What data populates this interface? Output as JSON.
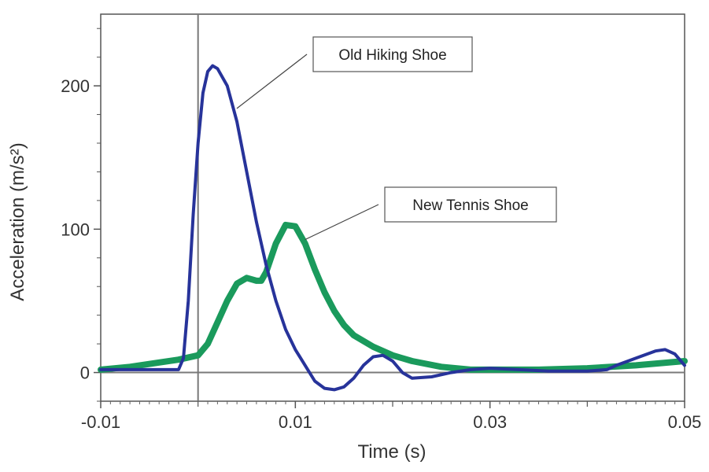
{
  "chart_data": {
    "type": "line",
    "xlabel": "Time (s)",
    "ylabel": "Acceleration (m/s²)",
    "xlim": [
      -0.01,
      0.05
    ],
    "ylim": [
      -20,
      250
    ],
    "x_ticks": [
      -0.01,
      0.01,
      0.03,
      0.05
    ],
    "x_tick_labels": [
      "-0.01",
      "0.01",
      "0.03",
      "0.05"
    ],
    "x_minor_ticks": [
      0.0,
      0.02,
      0.04
    ],
    "y_ticks": [
      0,
      100,
      200
    ],
    "y_tick_labels": [
      "0",
      "100",
      "200"
    ],
    "zero_line": true,
    "vertical_marker_x": 0.0,
    "grid": false,
    "series": [
      {
        "name": "Old Hiking Shoe",
        "color": "#27339a",
        "points": [
          [
            -0.01,
            2
          ],
          [
            -0.006,
            2
          ],
          [
            -0.002,
            2
          ],
          [
            -0.0015,
            10
          ],
          [
            -0.001,
            50
          ],
          [
            -0.0005,
            110
          ],
          [
            0.0,
            160
          ],
          [
            0.0005,
            195
          ],
          [
            0.001,
            210
          ],
          [
            0.0015,
            214
          ],
          [
            0.002,
            212
          ],
          [
            0.003,
            200
          ],
          [
            0.004,
            175
          ],
          [
            0.005,
            140
          ],
          [
            0.006,
            105
          ],
          [
            0.007,
            75
          ],
          [
            0.008,
            50
          ],
          [
            0.009,
            30
          ],
          [
            0.01,
            16
          ],
          [
            0.011,
            5
          ],
          [
            0.012,
            -6
          ],
          [
            0.013,
            -11
          ],
          [
            0.014,
            -12
          ],
          [
            0.015,
            -10
          ],
          [
            0.016,
            -4
          ],
          [
            0.017,
            5
          ],
          [
            0.018,
            11
          ],
          [
            0.019,
            12
          ],
          [
            0.02,
            8
          ],
          [
            0.021,
            0
          ],
          [
            0.022,
            -4
          ],
          [
            0.024,
            -3
          ],
          [
            0.026,
            0
          ],
          [
            0.028,
            2
          ],
          [
            0.03,
            3
          ],
          [
            0.033,
            2
          ],
          [
            0.036,
            1
          ],
          [
            0.04,
            1
          ],
          [
            0.042,
            2
          ],
          [
            0.043,
            5
          ],
          [
            0.045,
            10
          ],
          [
            0.047,
            15
          ],
          [
            0.048,
            16
          ],
          [
            0.049,
            13
          ],
          [
            0.05,
            5
          ]
        ]
      },
      {
        "name": "New Tennis Shoe",
        "color": "#1a9a5c",
        "points": [
          [
            -0.01,
            2
          ],
          [
            -0.007,
            4
          ],
          [
            -0.004,
            7
          ],
          [
            -0.002,
            9
          ],
          [
            0.0,
            12
          ],
          [
            0.001,
            20
          ],
          [
            0.002,
            35
          ],
          [
            0.003,
            50
          ],
          [
            0.004,
            62
          ],
          [
            0.005,
            66
          ],
          [
            0.006,
            64
          ],
          [
            0.0065,
            64
          ],
          [
            0.007,
            70
          ],
          [
            0.008,
            90
          ],
          [
            0.009,
            103
          ],
          [
            0.01,
            102
          ],
          [
            0.011,
            90
          ],
          [
            0.012,
            72
          ],
          [
            0.013,
            56
          ],
          [
            0.014,
            43
          ],
          [
            0.015,
            33
          ],
          [
            0.016,
            26
          ],
          [
            0.018,
            18
          ],
          [
            0.02,
            12
          ],
          [
            0.022,
            8
          ],
          [
            0.025,
            4
          ],
          [
            0.028,
            2
          ],
          [
            0.03,
            2
          ],
          [
            0.035,
            2
          ],
          [
            0.04,
            3
          ],
          [
            0.045,
            5
          ],
          [
            0.05,
            8
          ]
        ]
      }
    ],
    "annotations": [
      {
        "text": "Old Hiking Shoe",
        "series": 0,
        "point_x": 0.0035
      },
      {
        "text": "New Tennis Shoe",
        "series": 1,
        "point_x": 0.0105
      }
    ]
  }
}
